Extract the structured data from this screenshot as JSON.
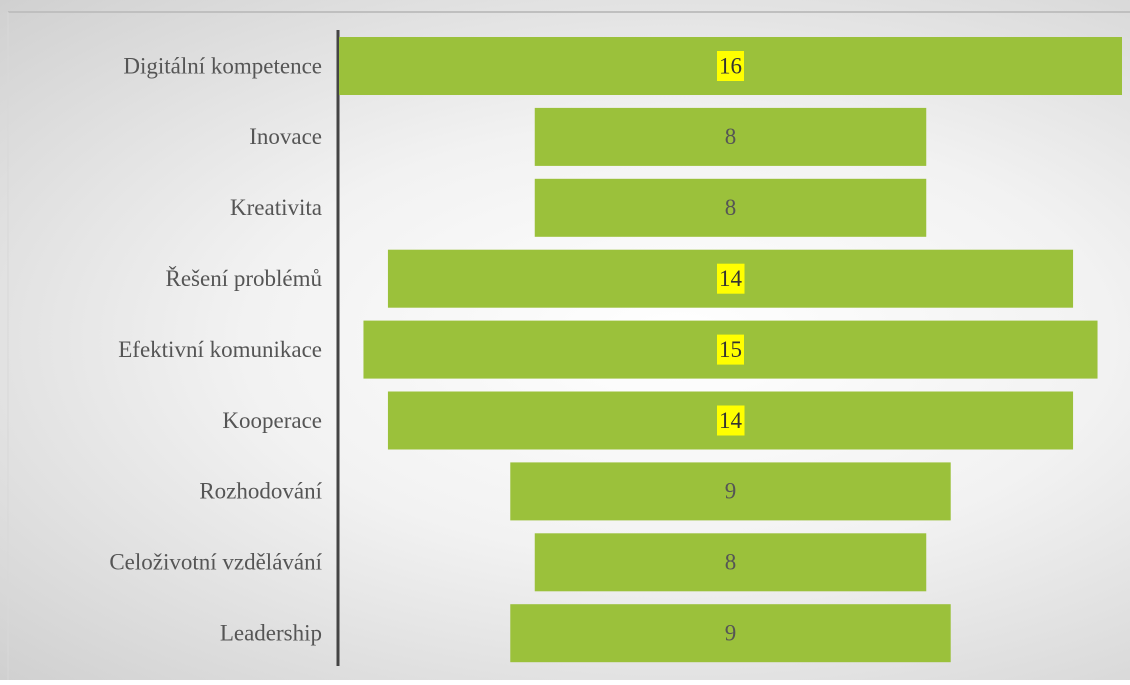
{
  "chart_data": {
    "type": "funnel",
    "categories": [
      "Digitální kompetence",
      "Inovace",
      "Kreativita",
      "Řešení problémů",
      "Efektivní komunikace",
      "Kooperace",
      "Rozhodování",
      "Celoživotní vzdělávání",
      "Leadership"
    ],
    "values": [
      16,
      8,
      8,
      14,
      15,
      14,
      9,
      8,
      9
    ],
    "color": "#9bc13b",
    "label_highlight": {
      "color": "#ffff00",
      "indices": [
        0,
        3,
        4,
        5
      ]
    }
  }
}
